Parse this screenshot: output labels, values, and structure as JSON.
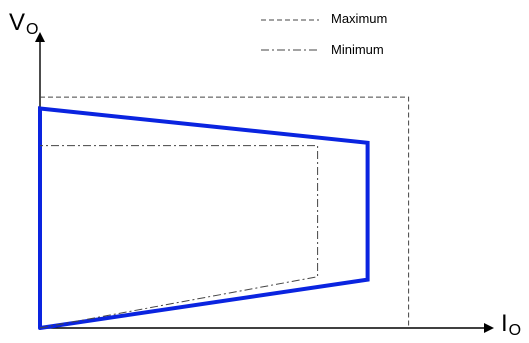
{
  "chart_data": {
    "type": "line",
    "title": "",
    "xlabel": {
      "main": "I",
      "sub": "O"
    },
    "ylabel": {
      "main": "V",
      "sub": "O"
    },
    "xlim": [
      0,
      100
    ],
    "ylim": [
      0,
      100
    ],
    "grid": false,
    "legend_position": "top-center",
    "series": [
      {
        "name": "",
        "role": "operating-region",
        "style": "solid",
        "color": "#0a24e0",
        "points": [
          [
            0,
            0
          ],
          [
            0,
            77
          ],
          [
            72,
            65
          ],
          [
            72,
            17
          ],
          [
            0,
            0
          ]
        ]
      },
      {
        "name": "Maximum",
        "style": "dashed",
        "color": "#444444",
        "points": [
          [
            0,
            81
          ],
          [
            81,
            81
          ],
          [
            81,
            0
          ]
        ]
      },
      {
        "name": "Minimum",
        "style": "dash-dot",
        "color": "#444444",
        "points": [
          [
            0,
            0
          ],
          [
            61,
            18
          ],
          [
            61,
            64
          ],
          [
            0,
            64
          ]
        ]
      }
    ],
    "legend": [
      {
        "label": "Maximum",
        "style": "dashed"
      },
      {
        "label": "Minimum",
        "style": "dash-dot"
      }
    ],
    "colors": {
      "axis": "#000000",
      "region": "#0a24e0",
      "guide": "#444444"
    }
  }
}
